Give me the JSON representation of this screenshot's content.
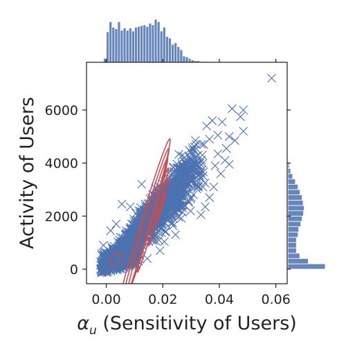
{
  "chart_data": {
    "type": "scatter",
    "title": "",
    "xlabel_symbol": "α",
    "xlabel_subscript": "u",
    "xlabel_text": " (Sensitivity of Users)",
    "ylabel": "Activity of Users",
    "xlim": [
      -0.007,
      0.064
    ],
    "ylim": [
      -550,
      7800
    ],
    "x_ticks": [
      0.0,
      0.02,
      0.04,
      0.06
    ],
    "x_tick_labels": [
      "0.00",
      "0.02",
      "0.04",
      "0.06"
    ],
    "y_ticks": [
      0,
      2000,
      4000,
      6000
    ],
    "y_tick_labels": [
      "0",
      "2000",
      "4000",
      "6000"
    ],
    "grid": false,
    "marker": "x",
    "colors": {
      "scatter": "#4c72b0",
      "kde": "#c44e52",
      "hist_face": "#4c72b0",
      "hist_edge": "#ffffff",
      "axes": "#222222"
    },
    "scatter_outliers": [
      {
        "x": 0.0585,
        "y": 7200
      },
      {
        "x": 0.0485,
        "y": 6000
      },
      {
        "x": 0.0445,
        "y": 6050
      },
      {
        "x": 0.0475,
        "y": 5750
      },
      {
        "x": 0.0485,
        "y": 5200
      },
      {
        "x": 0.041,
        "y": 5550
      },
      {
        "x": 0.0375,
        "y": 5600
      },
      {
        "x": 0.0355,
        "y": 5400
      },
      {
        "x": 0.0435,
        "y": 5000
      },
      {
        "x": 0.0395,
        "y": 5050
      },
      {
        "x": 0.0455,
        "y": 4850
      },
      {
        "x": 0.0425,
        "y": 4550
      },
      {
        "x": 0.0345,
        "y": 4700
      },
      {
        "x": 0.0365,
        "y": 4900
      },
      {
        "x": 0.0305,
        "y": 4500
      },
      {
        "x": 0.0325,
        "y": 4300
      },
      {
        "x": 0.0395,
        "y": 4350
      },
      {
        "x": 0.0385,
        "y": 3900
      },
      {
        "x": 0.0405,
        "y": 3600
      },
      {
        "x": 0.042,
        "y": 4100
      },
      {
        "x": 0.0435,
        "y": 3950
      },
      {
        "x": 0.0125,
        "y": 3200
      },
      {
        "x": 0.0085,
        "y": 2350
      },
      {
        "x": 0.0055,
        "y": 2450
      },
      {
        "x": 0.0035,
        "y": 1700
      },
      {
        "x": 0.0015,
        "y": 1450
      },
      {
        "x": -0.001,
        "y": 900
      },
      {
        "x": -0.002,
        "y": 150
      },
      {
        "x": 0.035,
        "y": 2350
      },
      {
        "x": 0.0365,
        "y": 2700
      },
      {
        "x": 0.038,
        "y": 3100
      },
      {
        "x": 0.0245,
        "y": 1300
      },
      {
        "x": 0.019,
        "y": 700
      },
      {
        "x": 0.0145,
        "y": 400
      },
      {
        "x": 0.0105,
        "y": 150
      },
      {
        "x": 0.0335,
        "y": 2050
      }
    ],
    "scatter_band": {
      "slope": 112000,
      "intercept": 150,
      "x_range": [
        -0.002,
        0.035
      ],
      "x_peak": 0.016,
      "x_sd": 0.0095,
      "y_noise_sd": 420
    },
    "kde_contours": [
      {
        "cx": 0.0035,
        "cy": 380,
        "sx": 0.0045,
        "sy": 230,
        "angle_deg": 8
      },
      {
        "cx": 0.0125,
        "cy": 1300,
        "sx": 0.0285,
        "sy": 430,
        "angle_deg": 45
      },
      {
        "cx": 0.0135,
        "cy": 1450,
        "sx": 0.0245,
        "sy": 340,
        "angle_deg": 45
      },
      {
        "cx": 0.0145,
        "cy": 1600,
        "sx": 0.0205,
        "sy": 270,
        "angle_deg": 45
      },
      {
        "cx": 0.0165,
        "cy": 1850,
        "sx": 0.0155,
        "sy": 200,
        "angle_deg": 45
      },
      {
        "cx": 0.0185,
        "cy": 2150,
        "sx": 0.01,
        "sy": 150,
        "angle_deg": 45
      },
      {
        "cx": 0.0195,
        "cy": 2350,
        "sx": 0.005,
        "sy": 95,
        "angle_deg": 45
      }
    ],
    "x_marginal_hist": {
      "bin_start": -0.001,
      "bin_width": 0.001,
      "counts": [
        5,
        39,
        52,
        45,
        43,
        52,
        41,
        44,
        41,
        44,
        40,
        45,
        46,
        47,
        48,
        46,
        50,
        48,
        55,
        52,
        40,
        45,
        33,
        31,
        23,
        25,
        20,
        16,
        8,
        7,
        5,
        3,
        2,
        2,
        1,
        1,
        1
      ]
    },
    "y_marginal_hist": {
      "bin_start": 0,
      "bin_width": 200,
      "counts": [
        110,
        60,
        35,
        25,
        25,
        25,
        30,
        32,
        38,
        42,
        46,
        48,
        45,
        42,
        36,
        30,
        22,
        14,
        8,
        4,
        2,
        1,
        1
      ]
    }
  }
}
